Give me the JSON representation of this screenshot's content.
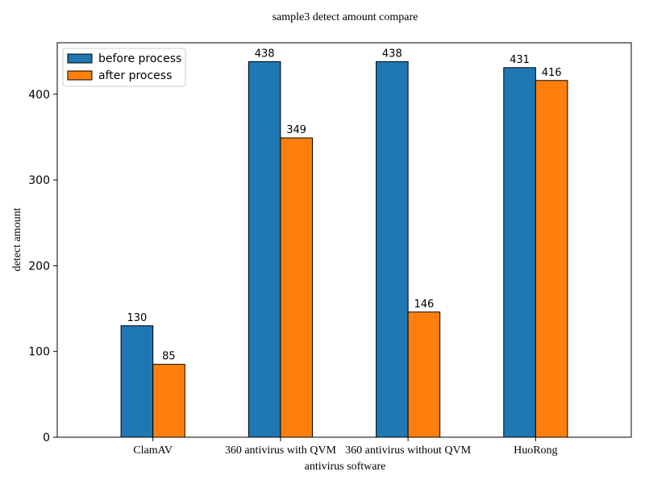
{
  "chart_data": {
    "type": "bar",
    "title": "sample3 detect amount compare",
    "xlabel": "antivirus software",
    "ylabel": "detect amount",
    "categories": [
      "ClamAV",
      "360 antivirus with QVM",
      "360 antivirus without QVM",
      "HuoRong"
    ],
    "series": [
      {
        "name": "before process",
        "color": "#1f77b4",
        "values": [
          130,
          438,
          438,
          431
        ]
      },
      {
        "name": "after process",
        "color": "#ff7f0e",
        "values": [
          85,
          349,
          146,
          416
        ]
      }
    ],
    "ylim": [
      0,
      460
    ],
    "yticks": [
      0,
      100,
      200,
      300,
      400
    ],
    "grid": false,
    "legend": "top-left",
    "data_labels": true
  }
}
